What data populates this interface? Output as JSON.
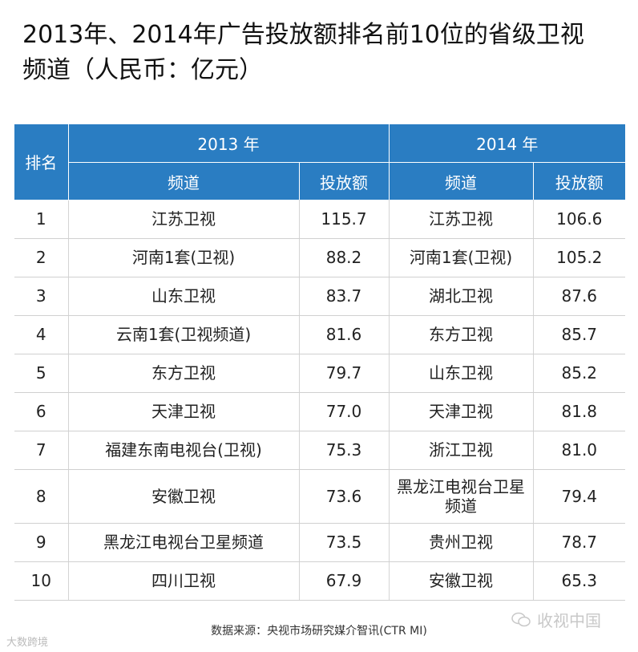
{
  "title": {
    "line1": "2013年、2014年广告投放额排名前10位的省级卫视",
    "line2": "频道（人民币：亿元）"
  },
  "table": {
    "rank_header": "排名",
    "year_2013": "2013 年",
    "year_2014": "2014 年",
    "channel_header": "频道",
    "amount_header": "投放额",
    "rows": [
      {
        "rank": "1",
        "c2013": "江苏卫视",
        "v2013": "115.7",
        "c2014": "江苏卫视",
        "v2014": "106.6"
      },
      {
        "rank": "2",
        "c2013": "河南1套(卫视)",
        "v2013": "88.2",
        "c2014": "河南1套(卫视)",
        "v2014": "105.2"
      },
      {
        "rank": "3",
        "c2013": "山东卫视",
        "v2013": "83.7",
        "c2014": "湖北卫视",
        "v2014": "87.6"
      },
      {
        "rank": "4",
        "c2013": "云南1套(卫视频道)",
        "v2013": "81.6",
        "c2014": "东方卫视",
        "v2014": "85.7"
      },
      {
        "rank": "5",
        "c2013": "东方卫视",
        "v2013": "79.7",
        "c2014": "山东卫视",
        "v2014": "85.2"
      },
      {
        "rank": "6",
        "c2013": "天津卫视",
        "v2013": "77.0",
        "c2014": "天津卫视",
        "v2014": "81.8"
      },
      {
        "rank": "7",
        "c2013": "福建东南电视台(卫视)",
        "v2013": "75.3",
        "c2014": "浙江卫视",
        "v2014": "81.0"
      },
      {
        "rank": "8",
        "c2013": "安徽卫视",
        "v2013": "73.6",
        "c2014": "黑龙江电视台卫星频道",
        "v2014": "79.4"
      },
      {
        "rank": "9",
        "c2013": "黑龙江电视台卫星频道",
        "v2013": "73.5",
        "c2014": "贵州卫视",
        "v2014": "78.7"
      },
      {
        "rank": "10",
        "c2013": "四川卫视",
        "v2013": "67.9",
        "c2014": "安徽卫视",
        "v2014": "65.3"
      }
    ]
  },
  "source": "数据来源：央视市场研究媒介智讯(CTR MI)",
  "watermark_left": "大数跨境",
  "watermark_right": "收视中国"
}
